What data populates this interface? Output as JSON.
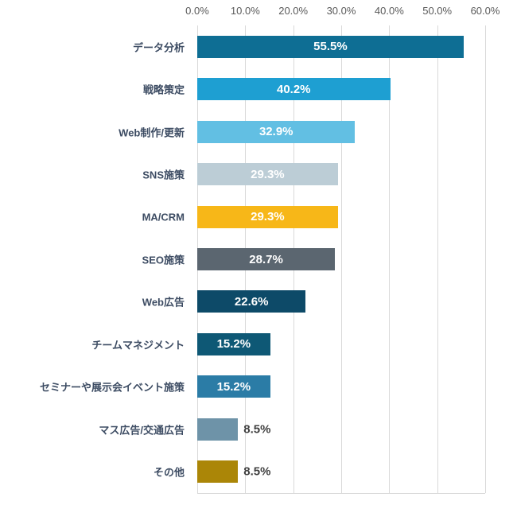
{
  "chart_data": {
    "type": "bar",
    "orientation": "horizontal",
    "title": "",
    "xlabel": "",
    "ylabel": "",
    "xlim": [
      0,
      60
    ],
    "grid": true,
    "legend": false,
    "categories": [
      "データ分析",
      "戦略策定",
      "Web制作/更新",
      "SNS施策",
      "MA/CRM",
      "SEO施策",
      "Web広告",
      "チームマネジメント",
      "セミナーや展示会イベント施策",
      "マス広告/交通広告",
      "その他"
    ],
    "values": [
      55.5,
      40.2,
      32.9,
      29.3,
      29.3,
      28.7,
      22.6,
      15.2,
      15.2,
      8.5,
      8.5
    ],
    "value_labels": [
      "55.5%",
      "40.2%",
      "32.9%",
      "29.3%",
      "29.3%",
      "28.7%",
      "22.6%",
      "15.2%",
      "15.2%",
      "8.5%",
      "8.5%"
    ],
    "bar_colors": [
      "#0e6e94",
      "#1e9fd2",
      "#62bfe3",
      "#bccdd6",
      "#f7b718",
      "#5b6670",
      "#0d4a68",
      "#0e5875",
      "#2b7ca6",
      "#6e93a8",
      "#ab8607"
    ],
    "x_ticks": [
      "0.0%",
      "10.0%",
      "20.0%",
      "30.0%",
      "40.0%",
      "50.0%",
      "60.0%"
    ],
    "x_tick_values": [
      0,
      10,
      20,
      30,
      40,
      50,
      60
    ]
  },
  "colors": {
    "background": "#ffffff",
    "grid": "#d9d9d9",
    "axis_text": "#595959",
    "category_text": "#3d4c63",
    "value_inside_text": "#ffffff",
    "value_outside_text": "#404040"
  }
}
